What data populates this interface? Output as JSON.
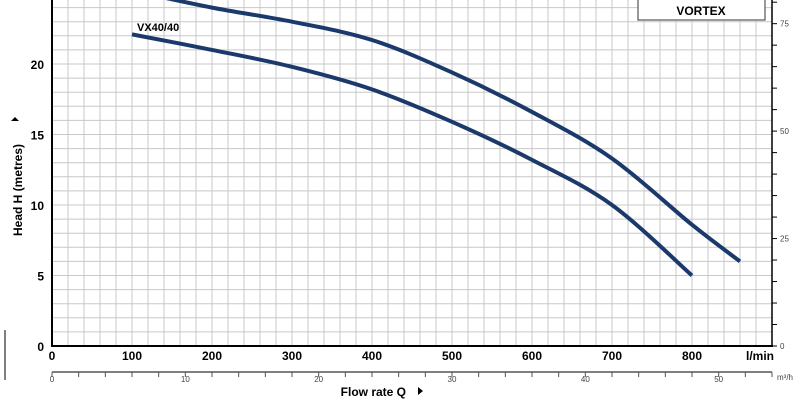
{
  "chart_data": {
    "type": "line",
    "title": "",
    "legend_box": "VORTEX",
    "xlabel": "Flow rate Q",
    "ylabel": "Head H (metres)",
    "x_unit": "l/min",
    "x2_unit": "m³/h",
    "xlim": [
      0,
      900
    ],
    "ylim": [
      0,
      24.5
    ],
    "x_ticks": [
      0,
      100,
      200,
      300,
      400,
      500,
      600,
      700,
      800
    ],
    "y_ticks": [
      0,
      5,
      10,
      15,
      20
    ],
    "x2_ticks": [
      0,
      10,
      20,
      30,
      40,
      50
    ],
    "y2_ticks": [
      0,
      25,
      50,
      75
    ],
    "grid": true,
    "series": [
      {
        "name": "",
        "x": [
          100,
          200,
          300,
          400,
          500,
          600,
          700,
          800,
          860
        ],
        "y": [
          25.2,
          24.0,
          23.0,
          21.7,
          19.4,
          16.6,
          13.3,
          8.6,
          6.0
        ]
      },
      {
        "name": "VX40/40",
        "x": [
          100,
          200,
          300,
          400,
          500,
          600,
          700,
          800
        ],
        "y": [
          22.1,
          21.0,
          19.8,
          18.2,
          15.9,
          13.2,
          10.0,
          5.0
        ]
      }
    ],
    "colors": {
      "curve": "#1b3a6b",
      "grid": "#c8c8c8"
    }
  }
}
